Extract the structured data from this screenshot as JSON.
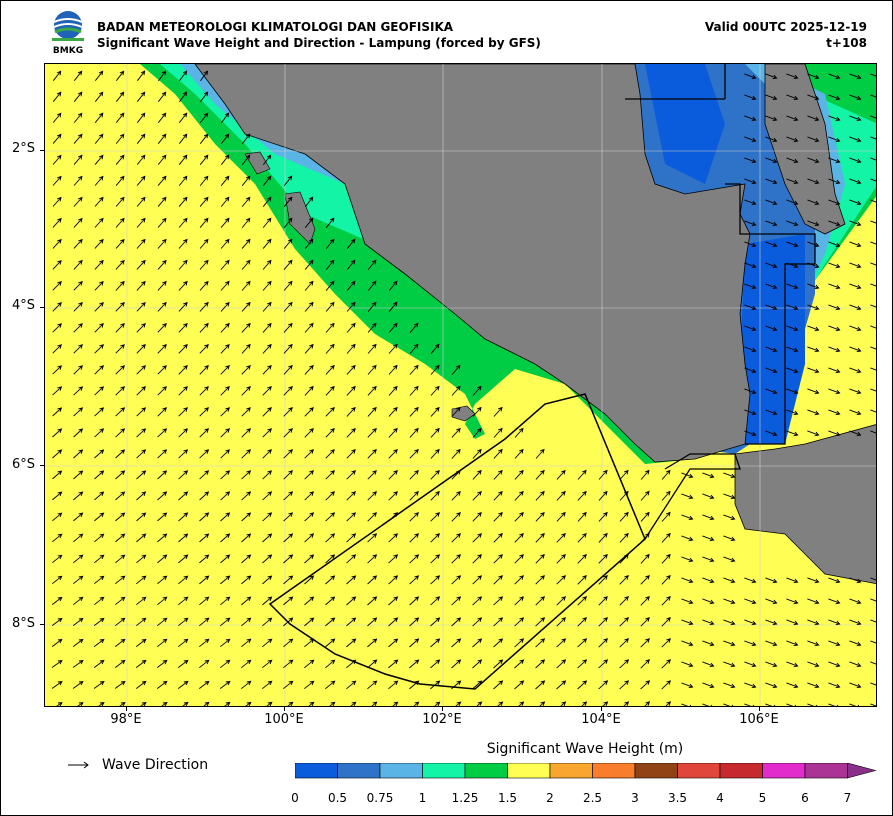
{
  "header": {
    "agency": "BADAN METEOROLOGI KLIMATOLOGI DAN GEOFISIKA",
    "subtitle": "Significant Wave Height and Direction - Lampung (forced by GFS)",
    "valid": "Valid 00UTC 2025-12-19",
    "lead": "t+108",
    "logo_text": "BMKG"
  },
  "map": {
    "lat_labels": [
      "2°S",
      "4°S",
      "6°S",
      "8°S"
    ],
    "lon_labels": [
      "98°E",
      "100°E",
      "102°E",
      "104°E",
      "106°E"
    ],
    "colors": {
      "land": "#808080",
      "sea_default": "#fefe55",
      "grid": "#cfcfcf"
    }
  },
  "legend": {
    "arrow_label": "Wave Direction"
  },
  "colorbar": {
    "title": "Significant Wave Height (m)",
    "labels": [
      "0",
      "0.5",
      "0.75",
      "1",
      "1.25",
      "1.5",
      "2",
      "2.5",
      "3",
      "3.5",
      "4",
      "5",
      "6",
      "7"
    ],
    "colors": [
      "#0a5cdc",
      "#2e73c8",
      "#5ab4e6",
      "#13f4a6",
      "#00cc44",
      "#fefe55",
      "#f8a630",
      "#f87d2c",
      "#914315",
      "#e0463a",
      "#c62a2e",
      "#e22ccc",
      "#aa3395",
      "#8a2f8a"
    ]
  }
}
